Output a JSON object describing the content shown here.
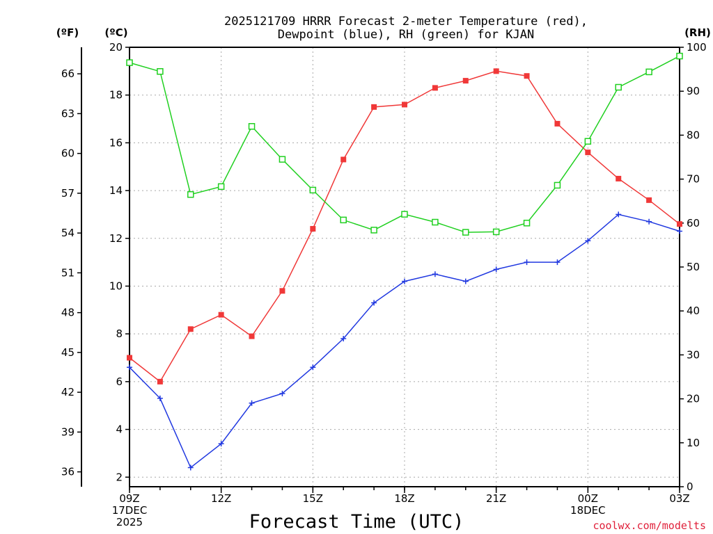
{
  "chart_data": {
    "type": "line",
    "title_lines": [
      "2025121709 HRRR Forecast 2-meter Temperature (red),",
      "Dewpoint (blue), RH (green) for KJAN"
    ],
    "xlabel": "Forecast Time (UTC)",
    "credit": "coolwx.com/modelts",
    "left_unit_f": "(ºF)",
    "left_unit_c": "(ºC)",
    "right_unit": "(RH)",
    "x_hours": [
      0,
      1,
      2,
      3,
      4,
      5,
      6,
      7,
      8,
      9,
      10,
      11,
      12,
      13,
      14,
      15,
      16,
      17,
      18
    ],
    "x_range": [
      0,
      18
    ],
    "x_ticks": [
      {
        "hour": 0,
        "lines": [
          "09Z",
          "17DEC",
          "2025"
        ]
      },
      {
        "hour": 3,
        "lines": [
          "12Z"
        ]
      },
      {
        "hour": 6,
        "lines": [
          "15Z"
        ]
      },
      {
        "hour": 9,
        "lines": [
          "18Z"
        ]
      },
      {
        "hour": 12,
        "lines": [
          "21Z"
        ]
      },
      {
        "hour": 15,
        "lines": [
          "00Z",
          "18DEC"
        ]
      },
      {
        "hour": 18,
        "lines": [
          "03Z"
        ]
      }
    ],
    "celsius_axis": {
      "range": [
        1.6,
        20
      ],
      "ticks": [
        2,
        4,
        6,
        8,
        10,
        12,
        14,
        16,
        18,
        20
      ]
    },
    "fahrenheit_ticks": [
      36,
      39,
      42,
      45,
      48,
      51,
      54,
      57,
      60,
      63,
      66
    ],
    "rh_axis": {
      "range": [
        0,
        100
      ],
      "ticks": [
        0,
        10,
        20,
        30,
        40,
        50,
        60,
        70,
        80,
        90,
        100
      ]
    },
    "series": [
      {
        "name": "Temperature",
        "unit": "C",
        "color": "#f03838",
        "marker": "square-filled",
        "values": [
          7.0,
          6.0,
          8.2,
          8.8,
          7.9,
          9.8,
          12.4,
          15.3,
          17.5,
          17.6,
          18.3,
          18.6,
          19.0,
          18.8,
          16.8,
          15.6,
          14.5,
          13.6,
          12.6
        ]
      },
      {
        "name": "Dewpoint",
        "unit": "C",
        "color": "#2038e0",
        "marker": "plus",
        "values": [
          6.6,
          5.3,
          2.4,
          3.4,
          5.1,
          5.5,
          6.6,
          7.8,
          9.3,
          10.2,
          10.5,
          10.2,
          10.7,
          11.0,
          11.0,
          11.9,
          13.0,
          12.7,
          12.3
        ]
      },
      {
        "name": "RH",
        "unit": "%",
        "color": "#20d020",
        "marker": "square-open",
        "values": [
          96.5,
          94.5,
          66.5,
          68.3,
          82.0,
          74.5,
          67.5,
          60.7,
          58.4,
          62.0,
          60.2,
          57.9,
          58.0,
          60.0,
          68.6,
          78.6,
          90.9,
          94.4,
          98.0
        ]
      }
    ]
  }
}
